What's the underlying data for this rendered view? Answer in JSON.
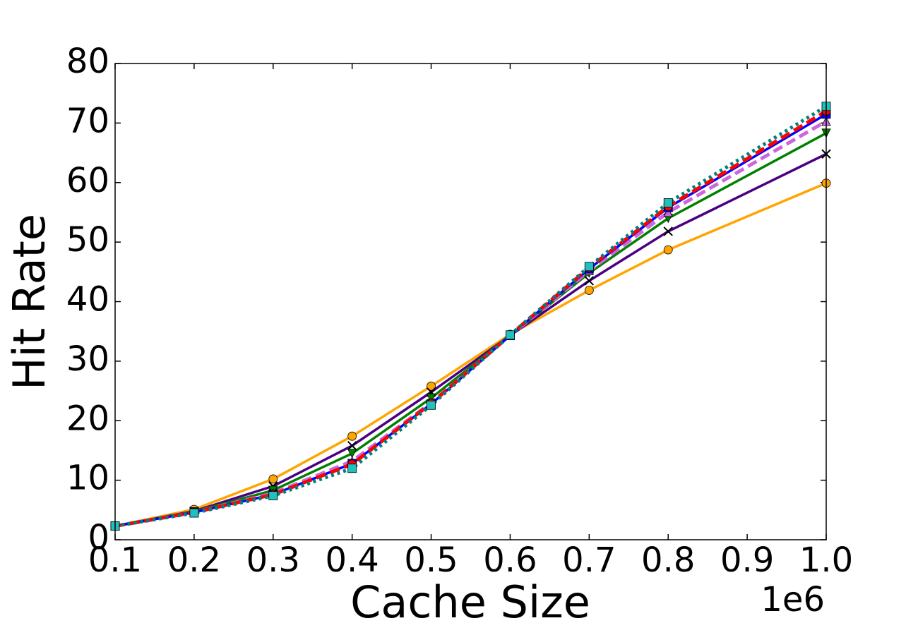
{
  "chart_data": {
    "type": "line",
    "x_label": "Cache Size",
    "y_label": "Hit Rate",
    "x_offset_label": "1e6",
    "x": [
      0.1,
      0.2,
      0.3,
      0.4,
      0.5,
      0.6,
      0.7,
      0.8,
      1.0
    ],
    "series": [
      {
        "color": "#ffa500",
        "marker": "circle",
        "dash": "solid",
        "values": [
          2.3,
          5.1,
          10.2,
          17.4,
          25.8,
          34.5,
          41.9,
          48.7,
          59.9
        ]
      },
      {
        "color": "#4b0082",
        "marker": "x",
        "dash": "solid",
        "values": [
          2.3,
          4.8,
          9.0,
          15.8,
          24.8,
          34.3,
          43.5,
          51.8,
          64.8
        ]
      },
      {
        "color": "#008000",
        "marker": "triangle-down",
        "dash": "solid",
        "values": [
          2.3,
          4.7,
          8.3,
          14.5,
          23.8,
          34.3,
          44.8,
          54.0,
          68.3
        ]
      },
      {
        "color": "#cc66dd",
        "marker": "triangle-up",
        "dash": "dashed",
        "values": [
          2.3,
          4.6,
          7.8,
          13.2,
          23.0,
          34.3,
          45.2,
          55.0,
          70.3
        ]
      },
      {
        "color": "#0000ff",
        "marker": "square",
        "dash": "solid",
        "values": [
          2.3,
          4.6,
          7.6,
          12.8,
          22.8,
          34.3,
          45.5,
          55.8,
          71.5
        ]
      },
      {
        "color": "#ff0000",
        "marker": "circle",
        "dash": "dashed",
        "values": [
          2.3,
          4.6,
          7.6,
          12.7,
          22.9,
          34.4,
          45.7,
          56.0,
          72.0
        ]
      },
      {
        "color": "#008080",
        "marker": "square",
        "dash": "dotted",
        "values": [
          2.3,
          4.5,
          7.4,
          12.0,
          22.6,
          34.4,
          45.9,
          56.6,
          72.8
        ]
      }
    ],
    "xlim": [
      0.1,
      1.0
    ],
    "ylim": [
      0,
      80
    ],
    "xticks": [
      0.1,
      0.2,
      0.3,
      0.4,
      0.5,
      0.6,
      0.7,
      0.8,
      0.9,
      {
        "value": 1.0,
        "label": "1.0"
      }
    ],
    "yticks": [
      0,
      10,
      20,
      30,
      40,
      50,
      60,
      70,
      80
    ],
    "grid": false
  }
}
